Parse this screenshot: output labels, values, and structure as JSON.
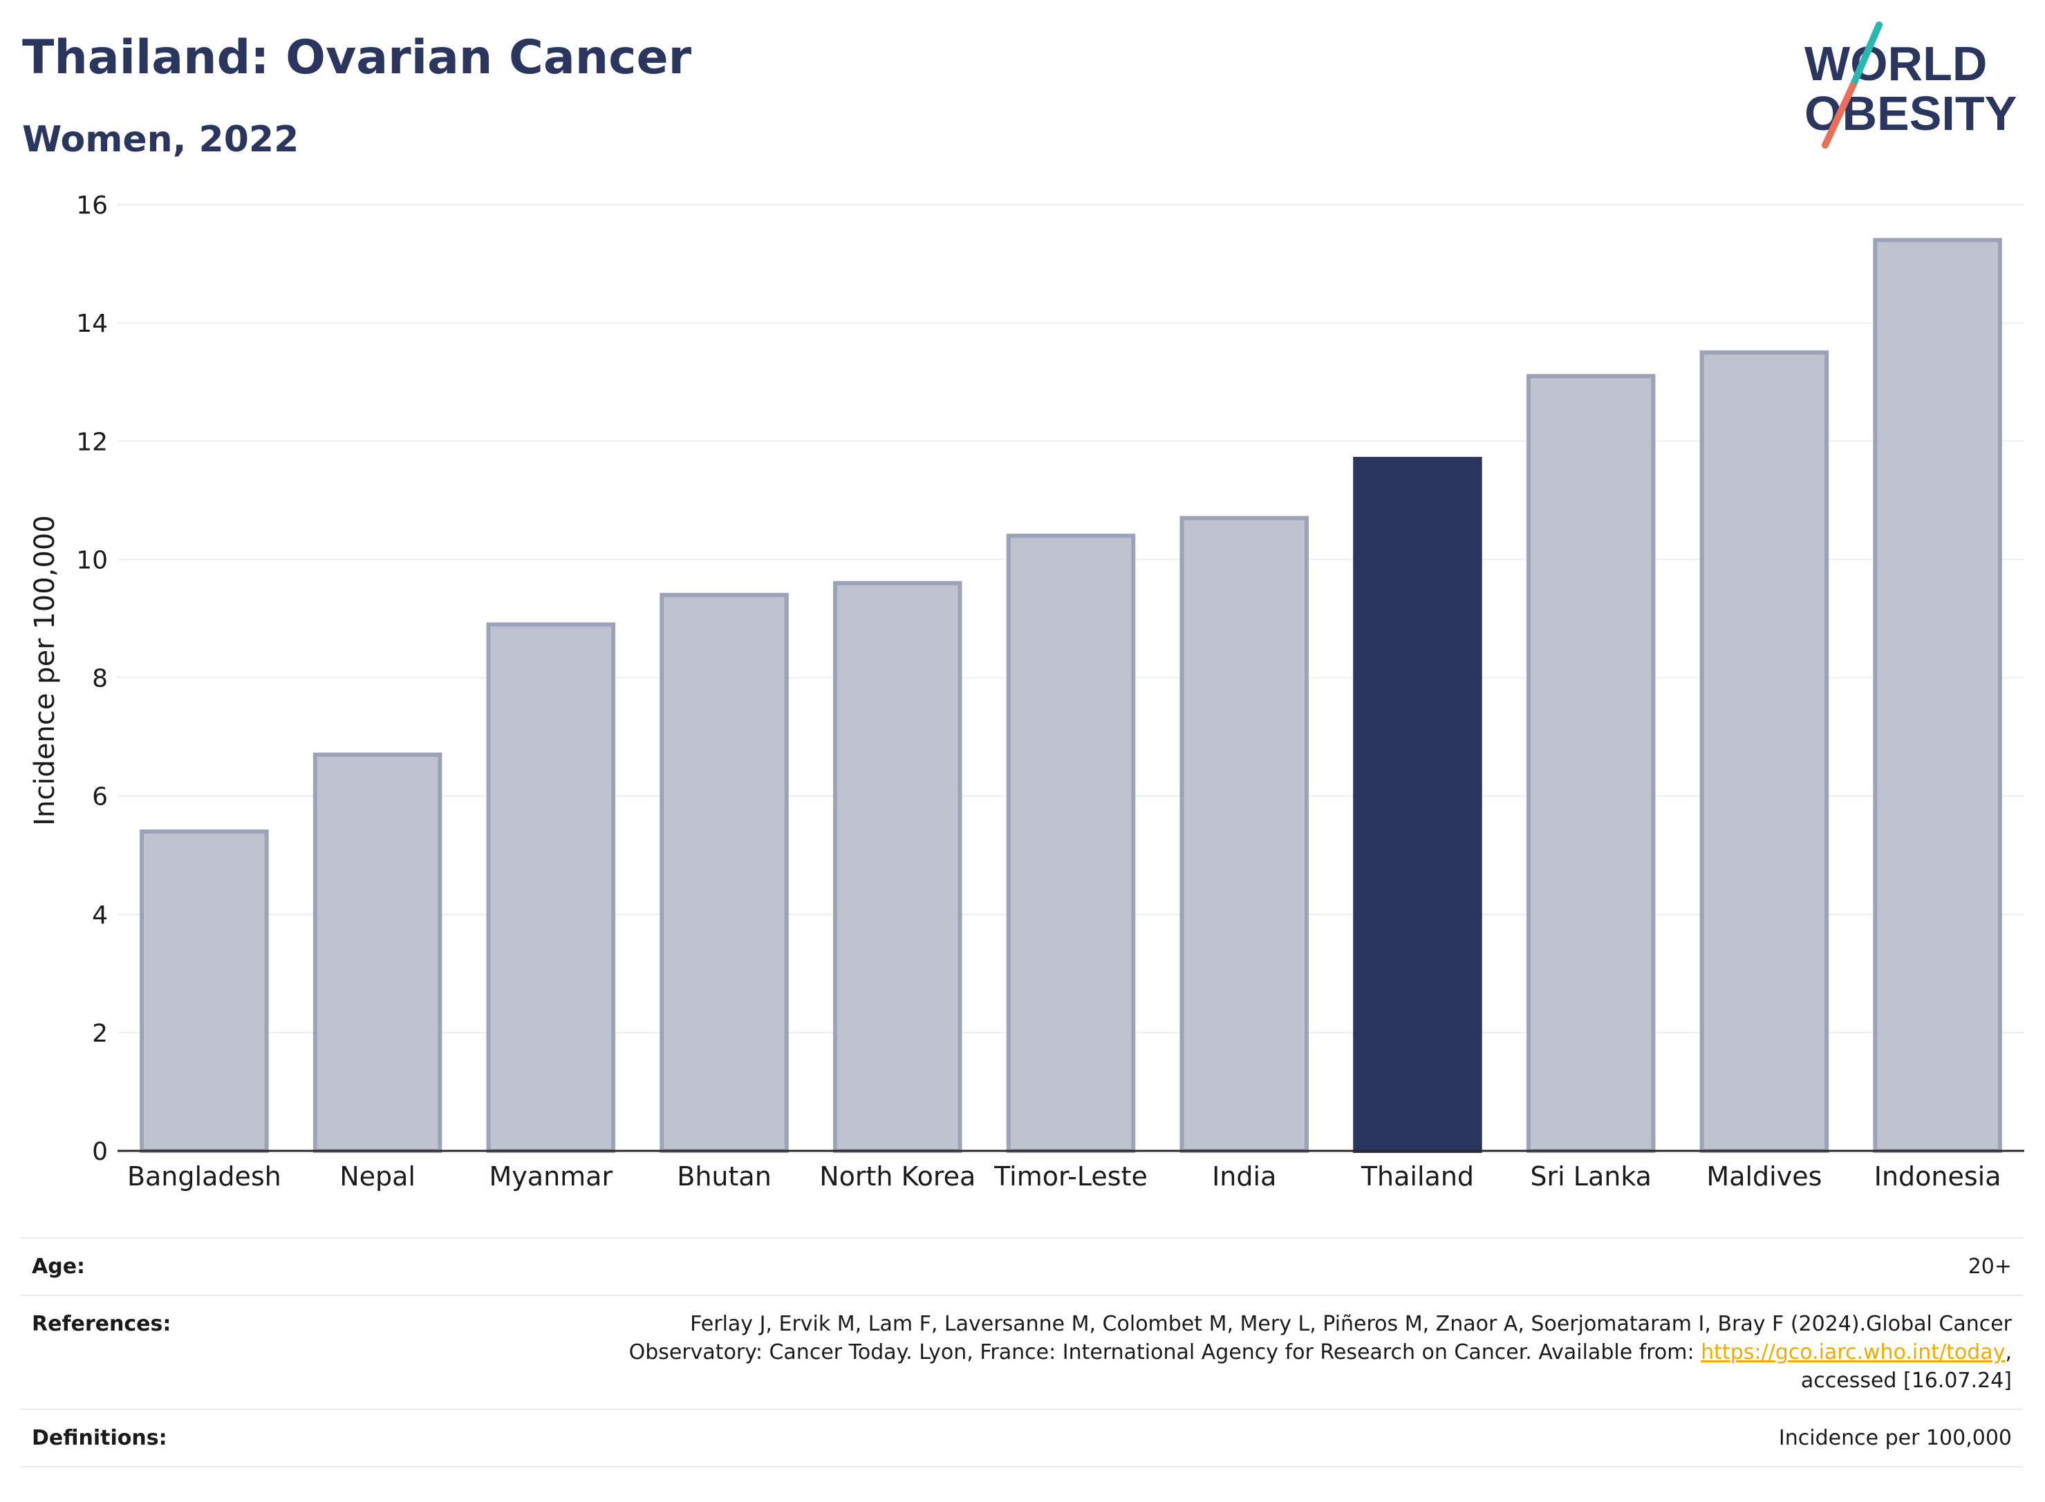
{
  "header": {
    "title": "Thailand: Ovarian Cancer",
    "subtitle": "Women, 2022"
  },
  "logo": {
    "line1": "WORLD",
    "line2": "OBESITY"
  },
  "colors": {
    "highlight": "#2b365f",
    "bar": "#bfc2cf",
    "bar_outline": "#9ca2b7",
    "grid": "#eceef3",
    "logo_text": "#2b365f",
    "logo_slash_teal": "#2ab7b0",
    "logo_slash_coral": "#e8705a"
  },
  "chart_data": {
    "type": "bar",
    "title": "Thailand: Ovarian Cancer",
    "subtitle": "Women, 2022",
    "xlabel": "",
    "ylabel": "Incidence per 100,000",
    "ylim": [
      0,
      16
    ],
    "yticks": [
      0,
      2,
      4,
      6,
      8,
      10,
      12,
      14,
      16
    ],
    "grid": true,
    "legend": "none",
    "highlight": "Thailand",
    "categories": [
      "Bangladesh",
      "Nepal",
      "Myanmar",
      "Bhutan",
      "North Korea",
      "Timor-Leste",
      "India",
      "Thailand",
      "Sri Lanka",
      "Maldives",
      "Indonesia"
    ],
    "values": [
      5.4,
      6.7,
      8.9,
      9.4,
      9.6,
      10.4,
      10.7,
      11.7,
      13.1,
      13.5,
      15.4
    ]
  },
  "info": {
    "age_label": "Age:",
    "age_value": "20+",
    "references_label": "References:",
    "references_text_1": "Ferlay J, Ervik M, Lam F, Laversanne M, Colombet M, Mery L, Piñeros M, Znaor A, Soerjomataram I, Bray F (2024).Global Cancer",
    "references_text_2": "Observatory: Cancer Today. Lyon, France: International Agency for Research on Cancer. Available from: ",
    "references_link": "https://gco.iarc.who.int/today",
    "references_text_3": ",",
    "references_text_4": "accessed [16.07.24]",
    "definitions_label": "Definitions:",
    "definitions_value": "Incidence per 100,000"
  }
}
